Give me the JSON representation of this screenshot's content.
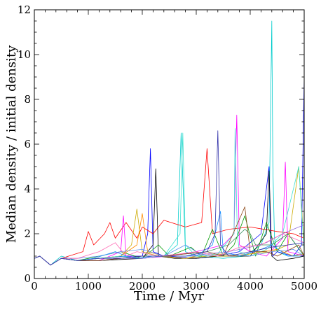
{
  "chart_data": {
    "type": "line",
    "title": "",
    "xlabel": "Time / Myr",
    "ylabel": "Median density / initial density",
    "xlim": [
      0,
      5000
    ],
    "ylim": [
      0,
      12
    ],
    "xticks": [
      0,
      1000,
      2000,
      3000,
      4000,
      5000
    ],
    "yticks": [
      0,
      2,
      4,
      6,
      8,
      10,
      12
    ],
    "grid": false,
    "legend": "none",
    "frame": "box with inward ticks on all four sides",
    "series": [
      {
        "color": "#00cccc",
        "x": [
          0,
          100,
          300,
          500,
          800,
          1200,
          1600,
          2000,
          2400,
          2650,
          2720,
          2800,
          3000,
          3500,
          3900,
          4200,
          4350,
          4400,
          4420,
          4450,
          4500,
          4700,
          5000
        ],
        "y": [
          0.9,
          1.0,
          0.6,
          1.0,
          0.8,
          0.9,
          1.0,
          0.9,
          1.0,
          1.5,
          6.5,
          1.2,
          1.0,
          0.9,
          1.0,
          1.5,
          2.5,
          11.5,
          5.0,
          1.8,
          1.2,
          1.0,
          1.1
        ]
      },
      {
        "color": "#0000ff",
        "x": [
          0,
          100,
          300,
          500,
          800,
          1200,
          1700,
          2000,
          2100,
          2150,
          2200,
          2400,
          3000,
          3400,
          3800,
          4200,
          4350,
          4380,
          4420,
          4500,
          4800,
          4950,
          5000
        ],
        "y": [
          0.9,
          1.0,
          0.6,
          0.9,
          0.8,
          0.9,
          1.0,
          1.0,
          2.0,
          5.8,
          1.2,
          1.0,
          0.9,
          1.0,
          1.2,
          2.0,
          5.0,
          1.5,
          1.0,
          1.2,
          1.0,
          1.5,
          9.0
        ]
      },
      {
        "color": "#ff0000",
        "x": [
          0,
          100,
          300,
          500,
          900,
          1000,
          1100,
          1300,
          1400,
          1500,
          1700,
          1900,
          2000,
          2200,
          2400,
          2800,
          3100,
          3200,
          3300,
          3600,
          4000,
          4500,
          4800,
          5000
        ],
        "y": [
          0.9,
          1.0,
          0.6,
          0.9,
          1.2,
          2.1,
          1.5,
          2.0,
          2.5,
          1.8,
          2.5,
          1.8,
          2.3,
          2.0,
          2.6,
          2.3,
          2.5,
          5.8,
          2.0,
          2.2,
          2.3,
          2.1,
          2.0,
          1.8
        ]
      },
      {
        "color": "#ff00ff",
        "x": [
          0,
          100,
          300,
          500,
          800,
          1200,
          1600,
          1650,
          1700,
          2000,
          2500,
          3000,
          3500,
          3700,
          3750,
          3800,
          4000,
          4300,
          4600,
          4650,
          4700,
          5000
        ],
        "y": [
          0.9,
          1.0,
          0.6,
          0.9,
          0.8,
          0.8,
          1.2,
          2.8,
          1.0,
          0.9,
          1.0,
          1.2,
          1.5,
          2.0,
          7.3,
          1.5,
          1.2,
          1.0,
          1.8,
          5.2,
          1.2,
          1.0
        ]
      },
      {
        "color": "#000000",
        "x": [
          0,
          100,
          300,
          500,
          800,
          1200,
          1600,
          2000,
          2200,
          2250,
          2300,
          2600,
          3000,
          3400,
          3700,
          4000,
          4300,
          4350,
          4400,
          4500,
          4800,
          5000
        ],
        "y": [
          0.9,
          1.0,
          0.6,
          0.9,
          0.8,
          0.8,
          0.85,
          0.9,
          1.5,
          4.9,
          1.0,
          0.9,
          0.9,
          1.0,
          1.0,
          1.0,
          2.0,
          4.8,
          1.0,
          0.8,
          0.9,
          1.0
        ]
      },
      {
        "color": "#009900",
        "x": [
          0,
          100,
          300,
          500,
          800,
          1200,
          1600,
          2000,
          2300,
          2500,
          2700,
          2900,
          3100,
          3300,
          3500,
          3700,
          3900,
          4100,
          4300,
          4500,
          4700,
          5000
        ],
        "y": [
          0.9,
          1.0,
          0.6,
          0.9,
          0.8,
          1.0,
          1.2,
          0.9,
          1.5,
          1.0,
          1.2,
          1.4,
          1.0,
          2.2,
          1.0,
          1.5,
          2.8,
          1.0,
          2.5,
          1.2,
          2.0,
          1.0
        ]
      },
      {
        "color": "#2e8b57",
        "x": [
          0,
          100,
          300,
          500,
          800,
          1200,
          1600,
          2000,
          2400,
          2800,
          3200,
          3600,
          3900,
          4000,
          4100,
          4400,
          4700,
          5000
        ],
        "y": [
          0.9,
          1.0,
          0.6,
          0.9,
          0.8,
          0.8,
          0.9,
          1.0,
          1.0,
          1.1,
          1.2,
          1.5,
          2.2,
          2.0,
          1.5,
          1.5,
          2.0,
          1.0
        ]
      },
      {
        "color": "#ff8c00",
        "x": [
          0,
          100,
          300,
          500,
          800,
          1200,
          1600,
          1900,
          2000,
          2100,
          2400,
          2800,
          3000,
          3400,
          3800,
          4200,
          4500,
          4800,
          5000
        ],
        "y": [
          0.9,
          1.0,
          0.6,
          0.9,
          0.8,
          0.9,
          1.0,
          1.5,
          2.9,
          1.2,
          1.0,
          0.9,
          1.0,
          1.1,
          1.0,
          1.2,
          1.3,
          1.0,
          1.1
        ]
      },
      {
        "color": "#ccaa00",
        "x": [
          0,
          100,
          300,
          500,
          800,
          1200,
          1600,
          1800,
          1900,
          2000,
          2300,
          2800,
          3200,
          3600,
          4000,
          4400,
          4700,
          4900,
          5000
        ],
        "y": [
          0.9,
          1.0,
          0.6,
          0.9,
          0.8,
          0.9,
          1.0,
          1.5,
          3.1,
          1.2,
          1.0,
          0.9,
          1.0,
          1.0,
          1.1,
          1.2,
          1.5,
          5.0,
          1.5
        ]
      },
      {
        "color": "#40e0d0",
        "x": [
          0,
          100,
          300,
          500,
          800,
          1200,
          1600,
          2000,
          2400,
          2700,
          2750,
          2800,
          3000,
          3400,
          3700,
          3720,
          3760,
          3800,
          4000,
          4300,
          4600,
          4900,
          5000
        ],
        "y": [
          0.9,
          1.0,
          0.6,
          0.9,
          0.8,
          0.9,
          1.0,
          0.9,
          1.0,
          2.0,
          6.5,
          1.5,
          1.0,
          1.1,
          2.0,
          6.7,
          2.0,
          1.2,
          1.0,
          1.3,
          2.0,
          5.0,
          1.2
        ]
      },
      {
        "color": "#9370db",
        "x": [
          0,
          100,
          300,
          500,
          800,
          1200,
          1600,
          2000,
          2400,
          2800,
          3200,
          3600,
          4000,
          4300,
          4600,
          5000
        ],
        "y": [
          0.9,
          1.0,
          0.6,
          0.9,
          0.8,
          0.8,
          0.9,
          0.9,
          1.0,
          1.0,
          1.1,
          1.2,
          1.4,
          1.6,
          2.0,
          2.4
        ]
      },
      {
        "color": "#6495ed",
        "x": [
          0,
          100,
          300,
          500,
          800,
          1200,
          1600,
          2000,
          2400,
          2800,
          3000,
          3200,
          3600,
          4000,
          4400,
          4800,
          5000
        ],
        "y": [
          0.9,
          1.0,
          0.6,
          0.9,
          0.9,
          1.0,
          1.2,
          1.3,
          1.0,
          1.5,
          1.2,
          1.0,
          1.1,
          1.0,
          1.2,
          1.3,
          1.0
        ]
      },
      {
        "color": "#8b4513",
        "x": [
          0,
          100,
          300,
          500,
          800,
          1200,
          1600,
          2000,
          2400,
          2800,
          3200,
          3500,
          3900,
          4000,
          4300,
          4500,
          4900,
          5000
        ],
        "y": [
          0.9,
          1.0,
          0.6,
          0.9,
          0.8,
          0.8,
          0.9,
          1.0,
          1.0,
          1.1,
          1.2,
          1.0,
          3.2,
          1.2,
          1.2,
          1.0,
          1.5,
          1.0
        ]
      },
      {
        "color": "#ff69b4",
        "x": [
          0,
          100,
          300,
          500,
          800,
          1200,
          1500,
          1700,
          1900,
          2300,
          2700,
          3000,
          3400,
          3800,
          4200,
          4600,
          5000
        ],
        "y": [
          0.9,
          1.0,
          0.6,
          0.9,
          0.9,
          1.2,
          1.6,
          1.0,
          1.2,
          1.0,
          1.1,
          1.2,
          1.0,
          1.4,
          1.5,
          2.0,
          1.6
        ]
      },
      {
        "color": "#1e90ff",
        "x": [
          0,
          100,
          300,
          500,
          800,
          1100,
          1500,
          1700,
          1900,
          2200,
          2600,
          3000,
          3300,
          3450,
          3500,
          3800,
          4200,
          4400,
          4700,
          5000
        ],
        "y": [
          0.9,
          1.0,
          0.6,
          0.9,
          0.8,
          0.9,
          1.2,
          1.0,
          0.9,
          1.0,
          1.0,
          1.0,
          1.5,
          3.0,
          1.2,
          1.0,
          1.3,
          1.5,
          1.0,
          1.0
        ]
      },
      {
        "color": "#3333aa",
        "x": [
          0,
          100,
          300,
          500,
          800,
          1200,
          1600,
          2000,
          2400,
          2800,
          3200,
          3350,
          3400,
          3450,
          3600,
          4000,
          4400,
          4700,
          5000
        ],
        "y": [
          0.9,
          1.0,
          0.6,
          0.9,
          0.8,
          0.9,
          0.9,
          1.0,
          1.0,
          1.0,
          1.2,
          2.0,
          6.6,
          1.5,
          1.0,
          1.2,
          1.4,
          1.5,
          1.6
        ]
      }
    ]
  }
}
